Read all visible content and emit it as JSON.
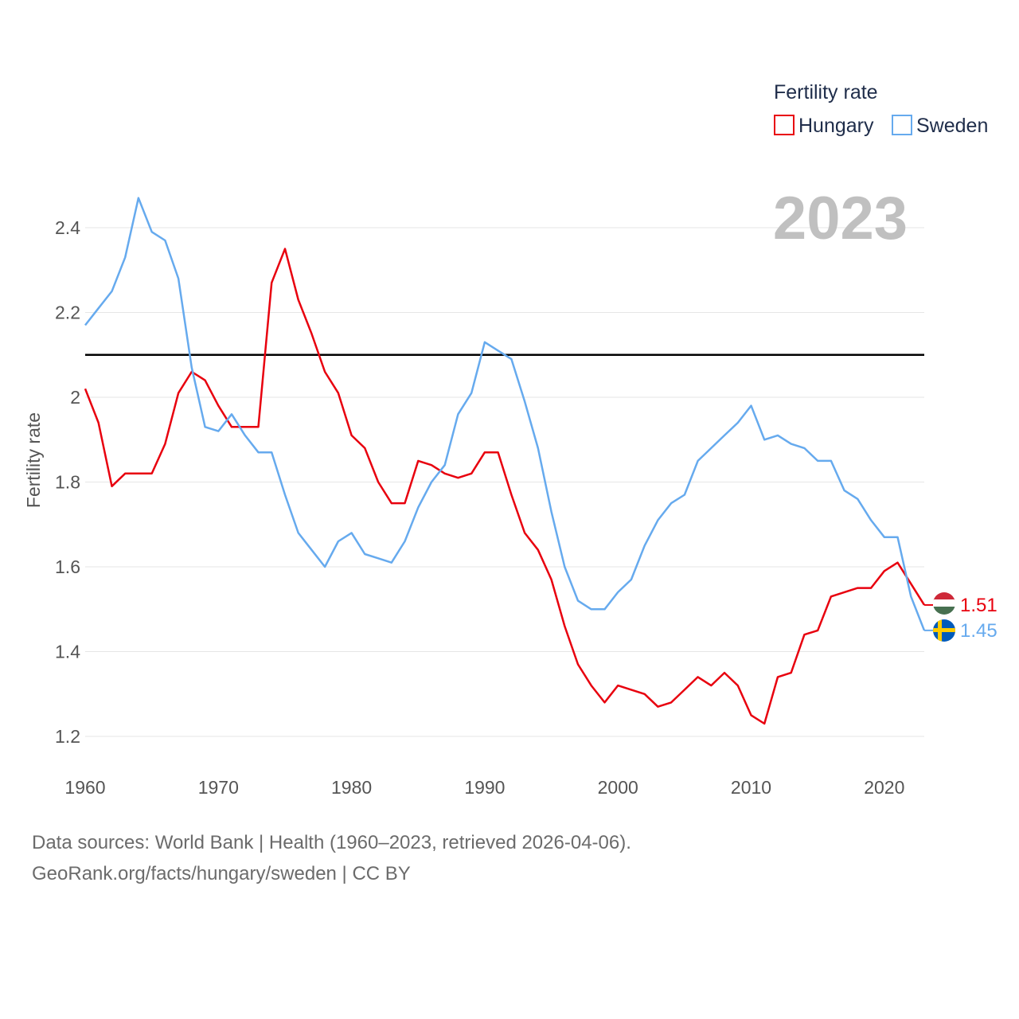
{
  "chart_data": {
    "type": "line",
    "title": "Fertility rate",
    "ylabel": "Fertility rate",
    "xlabel": "",
    "current_year": "2023",
    "xlim": [
      1960,
      2023
    ],
    "ylim": [
      1.15,
      2.5
    ],
    "x_ticks": [
      1960,
      1970,
      1980,
      1990,
      2000,
      2010,
      2020
    ],
    "y_ticks": [
      1.2,
      1.4,
      1.6,
      1.8,
      2.0,
      2.2,
      2.4
    ],
    "y_tick_labels": [
      "1.2",
      "1.4",
      "1.6",
      "1.8",
      "2",
      "2.2",
      "2.4"
    ],
    "reference_line": 2.1,
    "legend_title": "Fertility rate",
    "x": [
      1960,
      1961,
      1962,
      1963,
      1964,
      1965,
      1966,
      1967,
      1968,
      1969,
      1970,
      1971,
      1972,
      1973,
      1974,
      1975,
      1976,
      1977,
      1978,
      1979,
      1980,
      1981,
      1982,
      1983,
      1984,
      1985,
      1986,
      1987,
      1988,
      1989,
      1990,
      1991,
      1992,
      1993,
      1994,
      1995,
      1996,
      1997,
      1998,
      1999,
      2000,
      2001,
      2002,
      2003,
      2004,
      2005,
      2006,
      2007,
      2008,
      2009,
      2010,
      2011,
      2012,
      2013,
      2014,
      2015,
      2016,
      2017,
      2018,
      2019,
      2020,
      2021,
      2022,
      2023
    ],
    "series": [
      {
        "name": "Hungary",
        "color": "#e8000e",
        "end_label": "1.51",
        "values": [
          2.02,
          1.94,
          1.79,
          1.82,
          1.82,
          1.82,
          1.89,
          2.01,
          2.06,
          2.04,
          1.98,
          1.93,
          1.93,
          1.93,
          2.27,
          2.35,
          2.23,
          2.15,
          2.06,
          2.01,
          1.91,
          1.88,
          1.8,
          1.75,
          1.75,
          1.85,
          1.84,
          1.82,
          1.81,
          1.82,
          1.87,
          1.87,
          1.77,
          1.68,
          1.64,
          1.57,
          1.46,
          1.37,
          1.32,
          1.28,
          1.32,
          1.31,
          1.3,
          1.27,
          1.28,
          1.31,
          1.34,
          1.32,
          1.35,
          1.32,
          1.25,
          1.23,
          1.34,
          1.35,
          1.44,
          1.45,
          1.53,
          1.54,
          1.55,
          1.55,
          1.59,
          1.61,
          1.56,
          1.51
        ]
      },
      {
        "name": "Sweden",
        "color": "#66aaee",
        "end_label": "1.45",
        "values": [
          2.17,
          2.21,
          2.25,
          2.33,
          2.47,
          2.39,
          2.37,
          2.28,
          2.07,
          1.93,
          1.92,
          1.96,
          1.91,
          1.87,
          1.87,
          1.77,
          1.68,
          1.64,
          1.6,
          1.66,
          1.68,
          1.63,
          1.62,
          1.61,
          1.66,
          1.74,
          1.8,
          1.84,
          1.96,
          2.01,
          2.13,
          2.11,
          2.09,
          1.99,
          1.88,
          1.73,
          1.6,
          1.52,
          1.5,
          1.5,
          1.54,
          1.57,
          1.65,
          1.71,
          1.75,
          1.77,
          1.85,
          1.88,
          1.91,
          1.94,
          1.98,
          1.9,
          1.91,
          1.89,
          1.88,
          1.85,
          1.85,
          1.78,
          1.76,
          1.71,
          1.67,
          1.67,
          1.53,
          1.45
        ]
      }
    ]
  },
  "footer": {
    "line1": "Data sources: World Bank | Health (1960–2023, retrieved 2026-04-06).",
    "line2": "GeoRank.org/facts/hungary/sweden | CC BY"
  }
}
